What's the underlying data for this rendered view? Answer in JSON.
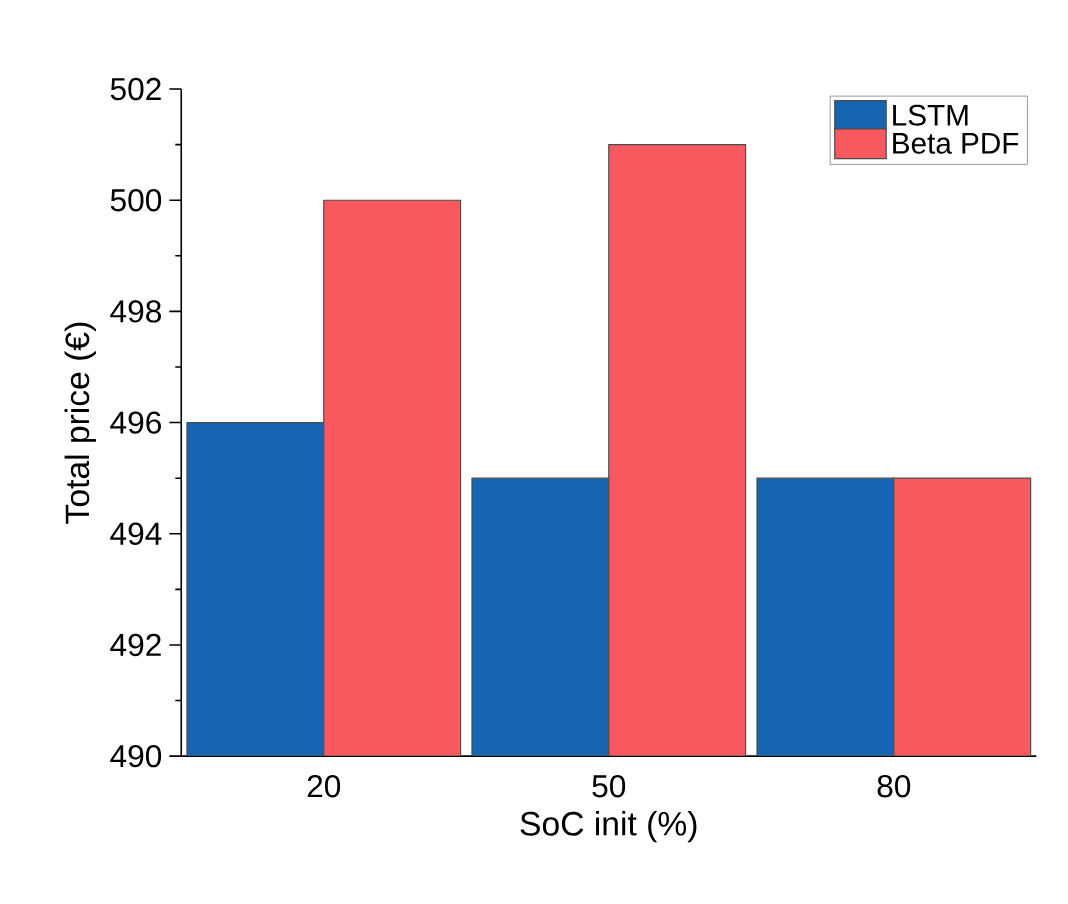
{
  "chart_data": {
    "type": "bar",
    "xlabel": "SoC init (%)",
    "ylabel": "Total price (€)",
    "categories": [
      "20",
      "50",
      "80"
    ],
    "series": [
      {
        "name": "LSTM",
        "color": "#1565b0",
        "values": [
          496,
          495,
          495
        ]
      },
      {
        "name": "Beta PDF",
        "color": "#f8595e",
        "values": [
          500,
          501,
          495
        ]
      }
    ],
    "ylim": [
      490,
      502
    ],
    "yticks": [
      490,
      492,
      494,
      496,
      498,
      500,
      502
    ],
    "legend": "top right",
    "grid": false
  }
}
